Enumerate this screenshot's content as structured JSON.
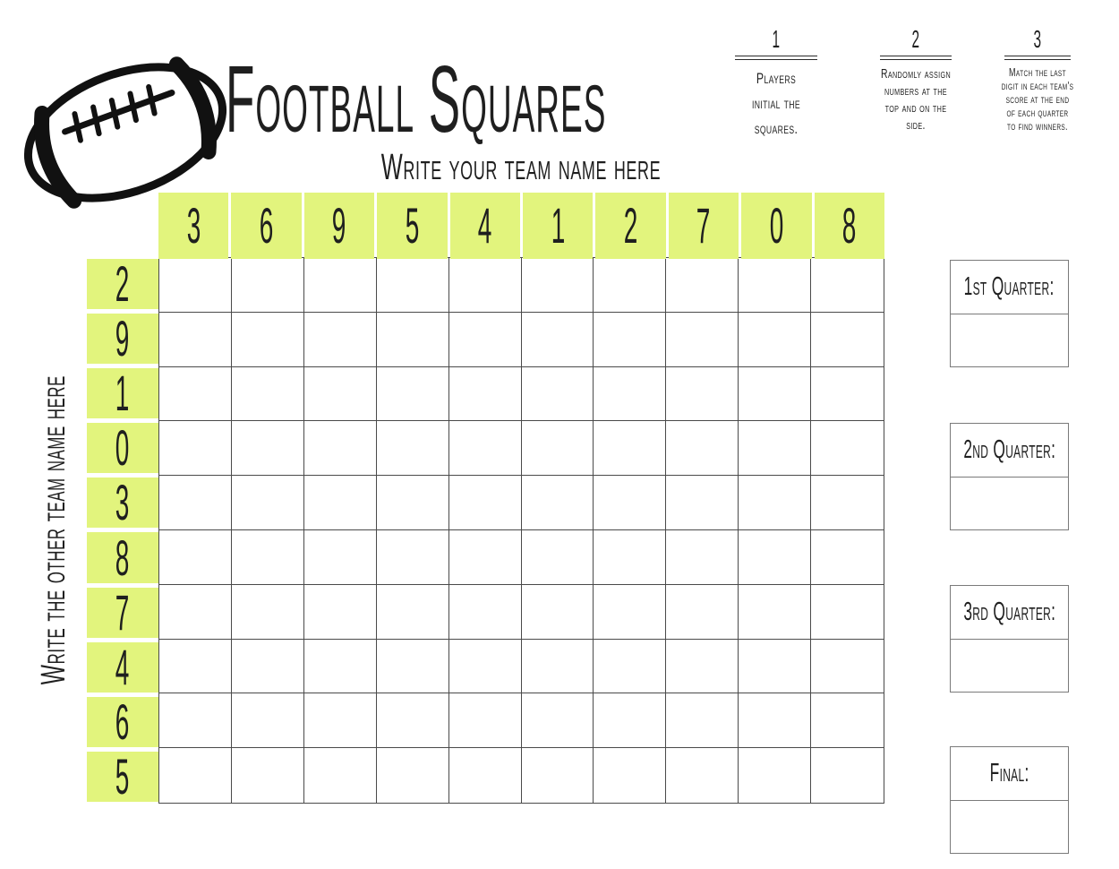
{
  "header": {
    "title": "Football Squares",
    "top_label": "Write your team name here",
    "side_label": "Write the other team name here"
  },
  "instructions": [
    {
      "step": "1",
      "text": "Players initial the squares."
    },
    {
      "step": "2",
      "text": "Randomly assign numbers at the top and on the side."
    },
    {
      "step": "3",
      "text": "Match the last digit in each team's score at the end of each quarter to find winners."
    }
  ],
  "grid": {
    "rows": 10,
    "cols": 10,
    "top_numbers": [
      "3",
      "6",
      "9",
      "5",
      "4",
      "1",
      "2",
      "7",
      "0",
      "8"
    ],
    "side_numbers": [
      "2",
      "9",
      "1",
      "0",
      "3",
      "8",
      "7",
      "4",
      "6",
      "5"
    ]
  },
  "score_boxes": [
    {
      "label": "1st Quarter:"
    },
    {
      "label": "2nd Quarter:"
    },
    {
      "label": "3rd Quarter:"
    },
    {
      "label": "Final:"
    }
  ],
  "colors": {
    "highlight": "#e2f47d",
    "grid-line": "#4a4a4a",
    "box-border": "#7a7a7a",
    "ink": "#1f1f1f"
  }
}
